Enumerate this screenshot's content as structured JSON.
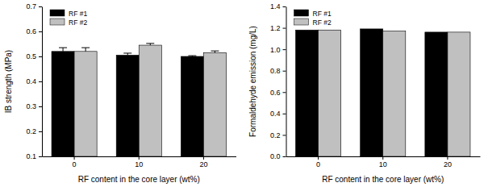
{
  "chart_data": [
    {
      "type": "bar",
      "y_label": "IB strength (MPa)",
      "x_label": "RF content in the core layer (wt%)",
      "categories": [
        "0",
        "10",
        "20"
      ],
      "series": [
        {
          "name": "RF #1",
          "color": "#000000",
          "values": [
            0.52,
            0.505,
            0.5
          ],
          "errors": [
            0.015,
            0.008,
            0.003
          ]
        },
        {
          "name": "RF #2",
          "color": "#c0c0c0",
          "values": [
            0.52,
            0.545,
            0.515
          ],
          "errors": [
            0.015,
            0.007,
            0.007
          ]
        }
      ],
      "ylim": [
        0.1,
        0.7
      ],
      "yticks": [
        0.1,
        0.2,
        0.3,
        0.4,
        0.5,
        0.6,
        0.7
      ],
      "grid": false,
      "legend": "upper left"
    },
    {
      "type": "bar",
      "y_label": "Formaldehyde emission (mg/L)",
      "x_label": "RF content in the core layer (wt%)",
      "categories": [
        "0",
        "10",
        "20"
      ],
      "series": [
        {
          "name": "RF #1",
          "color": "#000000",
          "values": [
            1.18,
            1.19,
            1.16
          ]
        },
        {
          "name": "RF #2",
          "color": "#c0c0c0",
          "values": [
            1.18,
            1.17,
            1.16
          ]
        }
      ],
      "ylim": [
        0,
        1.4
      ],
      "yticks": [
        {
          "value": 0,
          "label": "0.0"
        },
        0.2,
        0.4,
        0.6,
        0.8,
        {
          "value": 1,
          "label": "1.0"
        },
        1.2,
        1.4
      ],
      "grid": false,
      "legend": "upper left"
    }
  ]
}
